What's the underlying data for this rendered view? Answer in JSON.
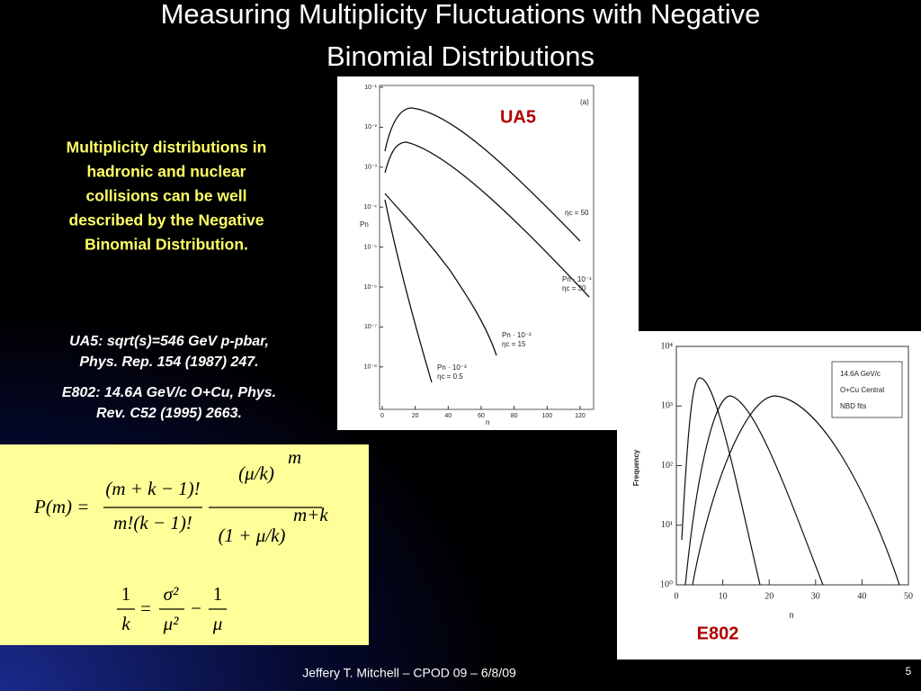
{
  "slide": {
    "title": [
      "Measuring Multiplicity Fluctuations with Negative",
      "Binomial Distributions"
    ],
    "description": [
      "Multiplicity distributions in",
      "hadronic and nuclear",
      "collisions can be well",
      "described by the Negative",
      "Binomial Distribution."
    ],
    "references": [
      [
        "UA5: sqrt(s)=546 GeV p-pbar,",
        "Phys. Rep. 154 (1987) 247."
      ],
      [
        "E802: 14.6A GeV/c O+Cu, Phys.",
        "Rev. C52 (1995) 2663."
      ]
    ],
    "formula": {
      "lhs": "P(m) =",
      "num1": "(m + k − 1)!",
      "den1": "m!(k − 1)!",
      "num2": "(μ/k)",
      "num2_exp": "m",
      "den2": "(1 + μ/k)",
      "den2_exp": "m+k",
      "line2": {
        "one_a": "1",
        "k": "k",
        "eq": "=",
        "sigma2": "σ²",
        "mu2": "μ²",
        "minus": "−",
        "one_b": "1",
        "mu": "μ"
      }
    },
    "ua5": {
      "label": "UA5",
      "panel": "(a)",
      "ylabel": "Pn",
      "xlabel": "n",
      "xticks": [
        0,
        20,
        40,
        60,
        80,
        100,
        120
      ],
      "yticks": [
        {
          "value": 0.1,
          "label": "10⁻¹"
        },
        {
          "value": 0.01,
          "label": "10⁻²"
        },
        {
          "value": 0.001,
          "label": "10⁻³"
        },
        {
          "value": 0.0001,
          "label": "10⁻⁴"
        },
        {
          "value": 1e-05,
          "label": "10⁻⁵"
        },
        {
          "value": 1e-06,
          "label": "10⁻⁶"
        },
        {
          "value": 1e-07,
          "label": "10⁻⁷"
        },
        {
          "value": 1e-08,
          "label": "10⁻⁸"
        }
      ],
      "curve_labels": [
        [
          "ηc = 50"
        ],
        [
          "Pn · 10⁻¹",
          "ηc = 30"
        ],
        [
          "Pn · 10⁻²",
          "ηc = 15"
        ],
        [
          "Pn · 10⁻³",
          "ηc = 0.5"
        ]
      ]
    },
    "e802": {
      "label": "E802",
      "ylabel": "Frequency",
      "xlabel": "n",
      "legend": [
        "14.6A GeV/c",
        "O+Cu Central",
        "NBD fits"
      ],
      "xticks": [
        0,
        10,
        20,
        30,
        40,
        50
      ],
      "yticks": [
        {
          "value": 1,
          "label": "10⁰"
        },
        {
          "value": 10,
          "label": "10¹"
        },
        {
          "value": 100,
          "label": "10²"
        },
        {
          "value": 1000,
          "label": "10³"
        },
        {
          "value": 10000,
          "label": "10⁴"
        }
      ]
    },
    "footer": "Jeffery T. Mitchell – CPOD 09 – 6/8/09",
    "page_number": "5"
  }
}
